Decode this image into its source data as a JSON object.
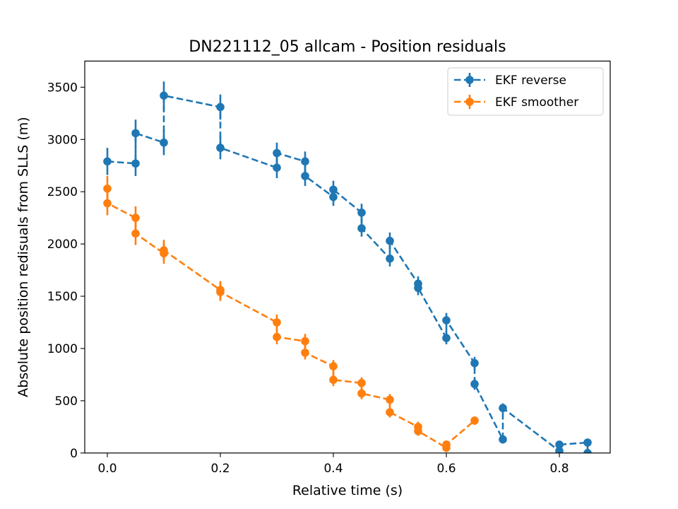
{
  "chart_data": {
    "type": "line",
    "title": "DN221112_05 allcam - Position residuals",
    "xlabel": "Relative time (s)",
    "ylabel": "Absolute position redisuals from SLLS (m)",
    "xlim": [
      -0.04,
      0.89
    ],
    "ylim": [
      0,
      3750
    ],
    "xticks": [
      0.0,
      0.2,
      0.4,
      0.6,
      0.8
    ],
    "xtick_labels": [
      "0.0",
      "0.2",
      "0.4",
      "0.6",
      "0.8"
    ],
    "yticks": [
      0,
      500,
      1000,
      1500,
      2000,
      2500,
      3000,
      3500
    ],
    "ytick_labels": [
      "0",
      "500",
      "1000",
      "1500",
      "2000",
      "2500",
      "3000",
      "3500"
    ],
    "grid": false,
    "legend_position": "top-right",
    "series": [
      {
        "name": "EKF reverse",
        "color": "#1f77b4",
        "linestyle": "dashed",
        "marker": "circle",
        "points": [
          {
            "x": 0.0,
            "y": 2790,
            "err": 130
          },
          {
            "x": 0.05,
            "y": 2770,
            "err": 120
          },
          {
            "x": 0.05,
            "y": 3060,
            "err": 130
          },
          {
            "x": 0.1,
            "y": 2970,
            "err": 120
          },
          {
            "x": 0.1,
            "y": 3420,
            "err": 135
          },
          {
            "x": 0.2,
            "y": 3310,
            "err": 120
          },
          {
            "x": 0.2,
            "y": 2920,
            "err": 110
          },
          {
            "x": 0.3,
            "y": 2730,
            "err": 100
          },
          {
            "x": 0.3,
            "y": 2870,
            "err": 100
          },
          {
            "x": 0.35,
            "y": 2790,
            "err": 95
          },
          {
            "x": 0.35,
            "y": 2650,
            "err": 95
          },
          {
            "x": 0.4,
            "y": 2450,
            "err": 85
          },
          {
            "x": 0.4,
            "y": 2520,
            "err": 85
          },
          {
            "x": 0.45,
            "y": 2300,
            "err": 85
          },
          {
            "x": 0.45,
            "y": 2150,
            "err": 80
          },
          {
            "x": 0.5,
            "y": 1860,
            "err": 75
          },
          {
            "x": 0.5,
            "y": 2030,
            "err": 80
          },
          {
            "x": 0.55,
            "y": 1620,
            "err": 70
          },
          {
            "x": 0.55,
            "y": 1580,
            "err": 70
          },
          {
            "x": 0.6,
            "y": 1100,
            "err": 60
          },
          {
            "x": 0.6,
            "y": 1270,
            "err": 70
          },
          {
            "x": 0.65,
            "y": 860,
            "err": 60
          },
          {
            "x": 0.65,
            "y": 660,
            "err": 55
          },
          {
            "x": 0.7,
            "y": 130,
            "err": 40
          },
          {
            "x": 0.7,
            "y": 430,
            "err": 45
          },
          {
            "x": 0.8,
            "y": 20,
            "err": 35
          },
          {
            "x": 0.8,
            "y": 80,
            "err": 35
          },
          {
            "x": 0.85,
            "y": 100,
            "err": 35
          },
          {
            "x": 0.85,
            "y": 0,
            "err": 35
          }
        ]
      },
      {
        "name": "EKF smoother",
        "color": "#ff7f0e",
        "linestyle": "dashed",
        "marker": "circle",
        "points": [
          {
            "x": 0.0,
            "y": 2530,
            "err": 120
          },
          {
            "x": 0.0,
            "y": 2390,
            "err": 115
          },
          {
            "x": 0.05,
            "y": 2250,
            "err": 110
          },
          {
            "x": 0.05,
            "y": 2100,
            "err": 110
          },
          {
            "x": 0.1,
            "y": 1910,
            "err": 100
          },
          {
            "x": 0.1,
            "y": 1940,
            "err": 100
          },
          {
            "x": 0.2,
            "y": 1560,
            "err": 85
          },
          {
            "x": 0.2,
            "y": 1540,
            "err": 85
          },
          {
            "x": 0.3,
            "y": 1250,
            "err": 75
          },
          {
            "x": 0.3,
            "y": 1110,
            "err": 70
          },
          {
            "x": 0.35,
            "y": 1070,
            "err": 70
          },
          {
            "x": 0.35,
            "y": 960,
            "err": 65
          },
          {
            "x": 0.4,
            "y": 830,
            "err": 60
          },
          {
            "x": 0.4,
            "y": 700,
            "err": 60
          },
          {
            "x": 0.45,
            "y": 670,
            "err": 55
          },
          {
            "x": 0.45,
            "y": 570,
            "err": 55
          },
          {
            "x": 0.5,
            "y": 510,
            "err": 55
          },
          {
            "x": 0.5,
            "y": 390,
            "err": 50
          },
          {
            "x": 0.55,
            "y": 250,
            "err": 50
          },
          {
            "x": 0.55,
            "y": 210,
            "err": 45
          },
          {
            "x": 0.6,
            "y": 50,
            "err": 40
          },
          {
            "x": 0.6,
            "y": 80,
            "err": 40
          },
          {
            "x": 0.65,
            "y": 310,
            "err": 40
          }
        ]
      }
    ]
  }
}
